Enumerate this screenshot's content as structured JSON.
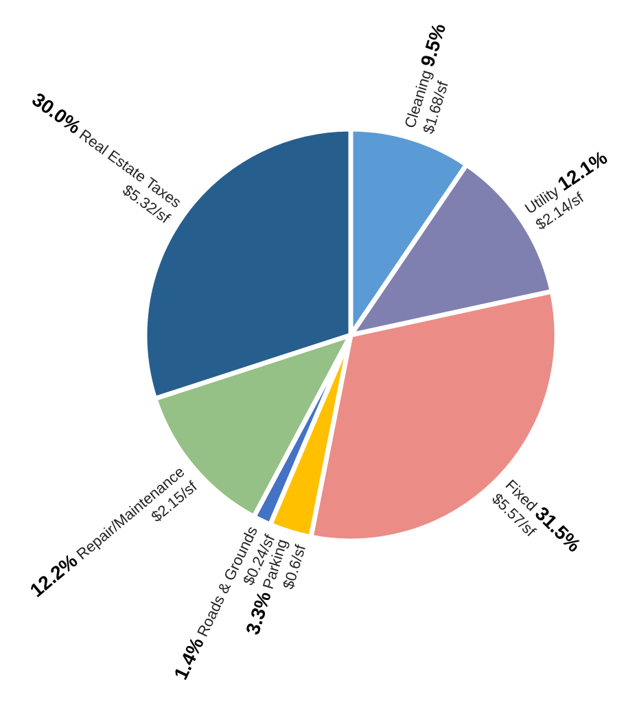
{
  "chart_data": {
    "type": "pie",
    "categories": [
      "Cleaning",
      "Utility",
      "Fixed",
      "Parking",
      "Roads & Grounds",
      "Repair/Maintenance",
      "Real Estate Taxes"
    ],
    "values": [
      9.5,
      12.1,
      31.5,
      3.3,
      1.4,
      12.2,
      30.0
    ],
    "value_labels": [
      "9.5%",
      "12.1%",
      "31.5%",
      "3.3%",
      "1.4%",
      "12.2%",
      "30.0%"
    ],
    "cost_labels": [
      "$1.68/sf",
      "$2.14/sf",
      "$5.57/sf",
      "$0.6/sf",
      "$0.24/sf",
      "$2.15/sf",
      "$5.32/sf"
    ],
    "colors": [
      "#5b9bd5",
      "#7f7fb0",
      "#ec8c86",
      "#ffc000",
      "#4472c4",
      "#95c086",
      "#265e8e"
    ]
  }
}
